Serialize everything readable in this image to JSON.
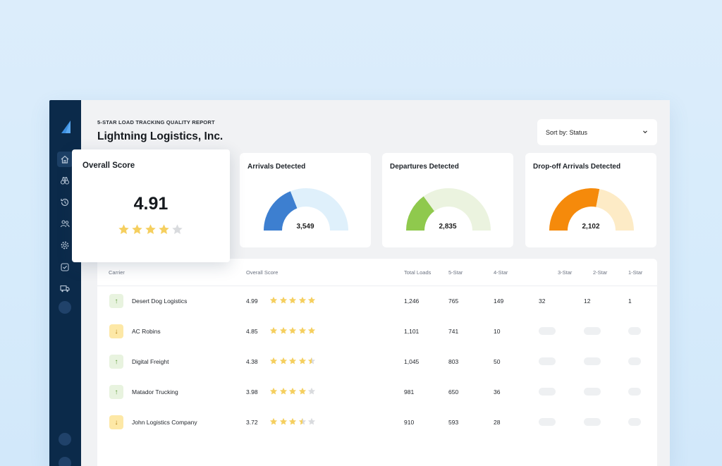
{
  "report": {
    "subtitle": "5-STAR LOAD TRACKING QUALITY REPORT",
    "title": "Lightning Logistics, Inc."
  },
  "sort": {
    "label": "Sort by: Status"
  },
  "sidebar": {
    "icons": [
      "home-icon",
      "binoculars-icon",
      "history-icon",
      "users-icon",
      "gear-icon",
      "checkbox-icon",
      "truck-icon"
    ]
  },
  "overall": {
    "title": "Overall Score",
    "value": "4.91",
    "stars": 4
  },
  "metrics": [
    {
      "title": "Arrivals Detected",
      "value": "3,549",
      "fraction": 0.38,
      "color": "#3d7fd0",
      "track": "#dff0fb"
    },
    {
      "title": "Departures Detected",
      "value": "2,835",
      "fraction": 0.3,
      "color": "#8fc94d",
      "track": "#ebf3df"
    },
    {
      "title": "Drop-off Arrivals Detected",
      "value": "2,102",
      "fraction": 0.56,
      "color": "#f58a0b",
      "track": "#fdebc6"
    }
  ],
  "table": {
    "headers": {
      "carrier": "Carrier",
      "score": "Overall Score",
      "total": "Total Loads",
      "five": "5-Star",
      "four": "4-Star",
      "three": "3-Star",
      "two": "2-Star",
      "one": "1-Star"
    },
    "rows": [
      {
        "trend": "up",
        "carrier": "Desert Dog Logistics",
        "score": "4.99",
        "stars": 5,
        "total": "1,246",
        "five": "765",
        "four": "149",
        "three": "32",
        "two": "12",
        "one": "1"
      },
      {
        "trend": "down",
        "carrier": "AC Robins",
        "score": "4.85",
        "stars": 5,
        "total": "1,101",
        "five": "741",
        "four": "10",
        "three": "",
        "two": "",
        "one": ""
      },
      {
        "trend": "up",
        "carrier": "Digital Freight",
        "score": "4.38",
        "stars": 4.5,
        "total": "1,045",
        "five": "803",
        "four": "50",
        "three": "",
        "two": "",
        "one": ""
      },
      {
        "trend": "up",
        "carrier": "Matador Trucking",
        "score": "3.98",
        "stars": 4,
        "total": "981",
        "five": "650",
        "four": "36",
        "three": "",
        "two": "",
        "one": ""
      },
      {
        "trend": "down",
        "carrier": "John Logistics Company",
        "score": "3.72",
        "stars": 3.5,
        "total": "910",
        "five": "593",
        "four": "28",
        "three": "",
        "two": "",
        "one": ""
      }
    ]
  },
  "colors": {
    "star_on": "#f5cf5f",
    "star_off": "#d9dbde",
    "sidebar": "#0b2a4a"
  }
}
